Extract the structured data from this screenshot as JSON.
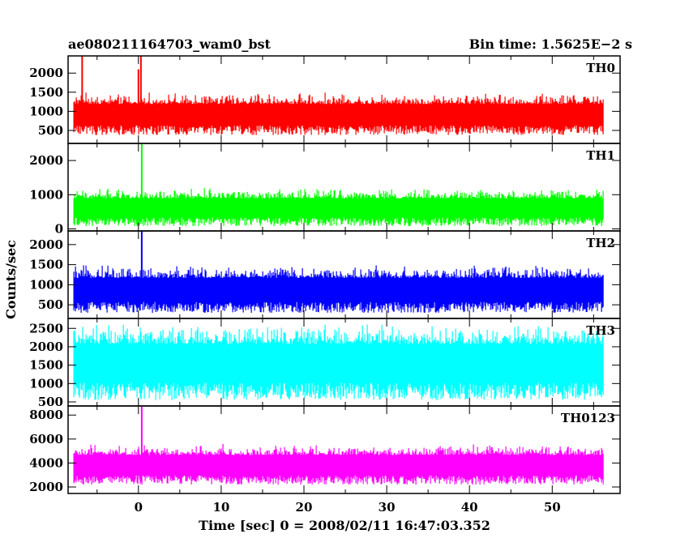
{
  "chart_data": {
    "type": "line",
    "title_left": "ae080211164703_wam0_bst",
    "title_right": "Bin time: 1.5625E−2 s",
    "xlabel": "Time [sec] 0 = 2008/02/11 16:47:03.352",
    "ylabel": "Counts/sec",
    "xlim": [
      -8.5,
      58.2
    ],
    "x_data_range": [
      -7.8,
      56.2
    ],
    "bin_time": 0.015625,
    "xticks": [
      0,
      10,
      20,
      30,
      40,
      50
    ],
    "xtick_labels": [
      "0",
      "10",
      "20",
      "30",
      "40",
      "50"
    ],
    "grid": false,
    "panels": [
      {
        "name": "TH0",
        "color": "#ff0000",
        "ylim": [
          160,
          2450
        ],
        "yticks": [
          500,
          1000,
          1500,
          2000
        ],
        "ytick_labels": [
          "500",
          "1000",
          "1500",
          "2000"
        ],
        "typical_min": 380,
        "typical_max": 1500,
        "spikes": [
          {
            "x": -6.8,
            "y": 2450
          },
          {
            "x": 0.3,
            "y": 2450
          },
          {
            "x": 0.0,
            "y": 2100
          }
        ]
      },
      {
        "name": "TH1",
        "color": "#00ff00",
        "ylim": [
          -60,
          2500
        ],
        "yticks": [
          0,
          1000,
          2000
        ],
        "ytick_labels": [
          "0",
          "1000",
          "2000"
        ],
        "typical_min": 80,
        "typical_max": 1200,
        "spikes": [
          {
            "x": 0.4,
            "y": 2480
          }
        ]
      },
      {
        "name": "TH2",
        "color": "#0000ff",
        "ylim": [
          160,
          2340
        ],
        "yticks": [
          500,
          1000,
          1500,
          2000
        ],
        "ytick_labels": [
          "500",
          "1000",
          "1500",
          "2000"
        ],
        "typical_min": 300,
        "typical_max": 1500,
        "spikes": [
          {
            "x": 0.4,
            "y": 2340
          }
        ]
      },
      {
        "name": "TH3",
        "color": "#00ffff",
        "ylim": [
          390,
          2770
        ],
        "yticks": [
          500,
          1000,
          1500,
          2000,
          2500
        ],
        "ytick_labels": [
          "500",
          "1000",
          "1500",
          "2000",
          "2500"
        ],
        "typical_min": 550,
        "typical_max": 2650,
        "spikes": []
      },
      {
        "name": "TH0123",
        "color": "#ff00ff",
        "ylim": [
          1460,
          8760
        ],
        "yticks": [
          2000,
          4000,
          6000,
          8000
        ],
        "ytick_labels": [
          "2000",
          "4000",
          "6000",
          "8000"
        ],
        "typical_min": 2200,
        "typical_max": 5600,
        "spikes": [
          {
            "x": 0.4,
            "y": 8700
          }
        ]
      }
    ]
  }
}
